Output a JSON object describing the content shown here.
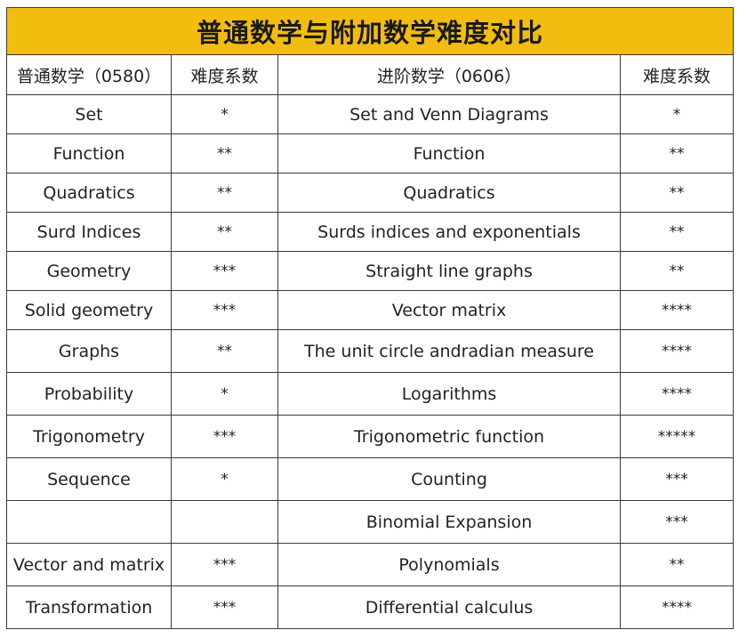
{
  "title": "普通数学与附加数学难度对比",
  "headers": [
    "普通数学（0580）",
    "难度系数",
    "进阶数学（0606）",
    "难度系数"
  ],
  "rows": [
    [
      "Set",
      "*",
      "Set and Venn Diagrams",
      "*"
    ],
    [
      "Function",
      "**",
      "Function",
      "**"
    ],
    [
      "Quadratics",
      "**",
      "Quadratics",
      "**"
    ],
    [
      "Surd Indices",
      "**",
      "Surds indices and exponentials",
      "**"
    ],
    [
      "Geometry",
      "***",
      "Straight line graphs",
      "**"
    ],
    [
      "Solid geometry",
      "***",
      "Vector matrix",
      "****"
    ],
    [
      "Graphs",
      "**",
      "The unit circle andradian measure",
      "****"
    ],
    [
      "Probability",
      "*",
      "Logarithms",
      "****"
    ],
    [
      "Trigonometry",
      "***",
      "Trigonometric function",
      "*****"
    ],
    [
      "Sequence",
      "*",
      "Counting",
      "***"
    ],
    [
      "",
      "",
      "Binomial Expansion",
      "***"
    ],
    [
      "Vector and matrix",
      "***",
      "Polynomials",
      "**"
    ],
    [
      "Transformation",
      "***",
      "Differential calculus",
      "****"
    ]
  ]
}
